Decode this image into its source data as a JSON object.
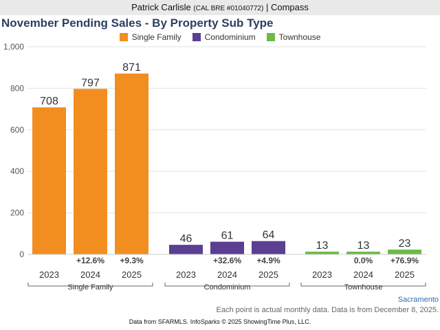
{
  "header": {
    "name": "Patrick Carlisle",
    "license": "(CAL BRE #01040772)",
    "separator": "|",
    "company": "Compass"
  },
  "footer": {
    "city": "Sacramento",
    "note": "Each point is actual monthly data. Data is from December 8, 2025.",
    "credit": "Data from SFARMLS. InfoSparks © 2025 ShowingTime Plus, LLC."
  },
  "chart_data": {
    "type": "bar",
    "title": "November Pending Sales - By Property Sub Type",
    "ylim": [
      0,
      1000
    ],
    "yticks": [
      "0",
      "200",
      "400",
      "600",
      "800",
      "1,000"
    ],
    "grid": true,
    "legend_position": "top-center",
    "groups": [
      {
        "name": "Single Family",
        "color": "#f28e1f",
        "years": [
          "2023",
          "2024",
          "2025"
        ],
        "values": [
          708,
          797,
          871
        ],
        "changes": [
          "",
          "+12.6%",
          "+9.3%"
        ]
      },
      {
        "name": "Condominium",
        "color": "#5b3f92",
        "years": [
          "2023",
          "2024",
          "2025"
        ],
        "values": [
          46,
          61,
          64
        ],
        "changes": [
          "",
          "+32.6%",
          "+4.9%"
        ]
      },
      {
        "name": "Townhouse",
        "color": "#6cba46",
        "years": [
          "2023",
          "2024",
          "2025"
        ],
        "values": [
          13,
          13,
          23
        ],
        "changes": [
          "",
          "0.0%",
          "+76.9%"
        ]
      }
    ]
  }
}
